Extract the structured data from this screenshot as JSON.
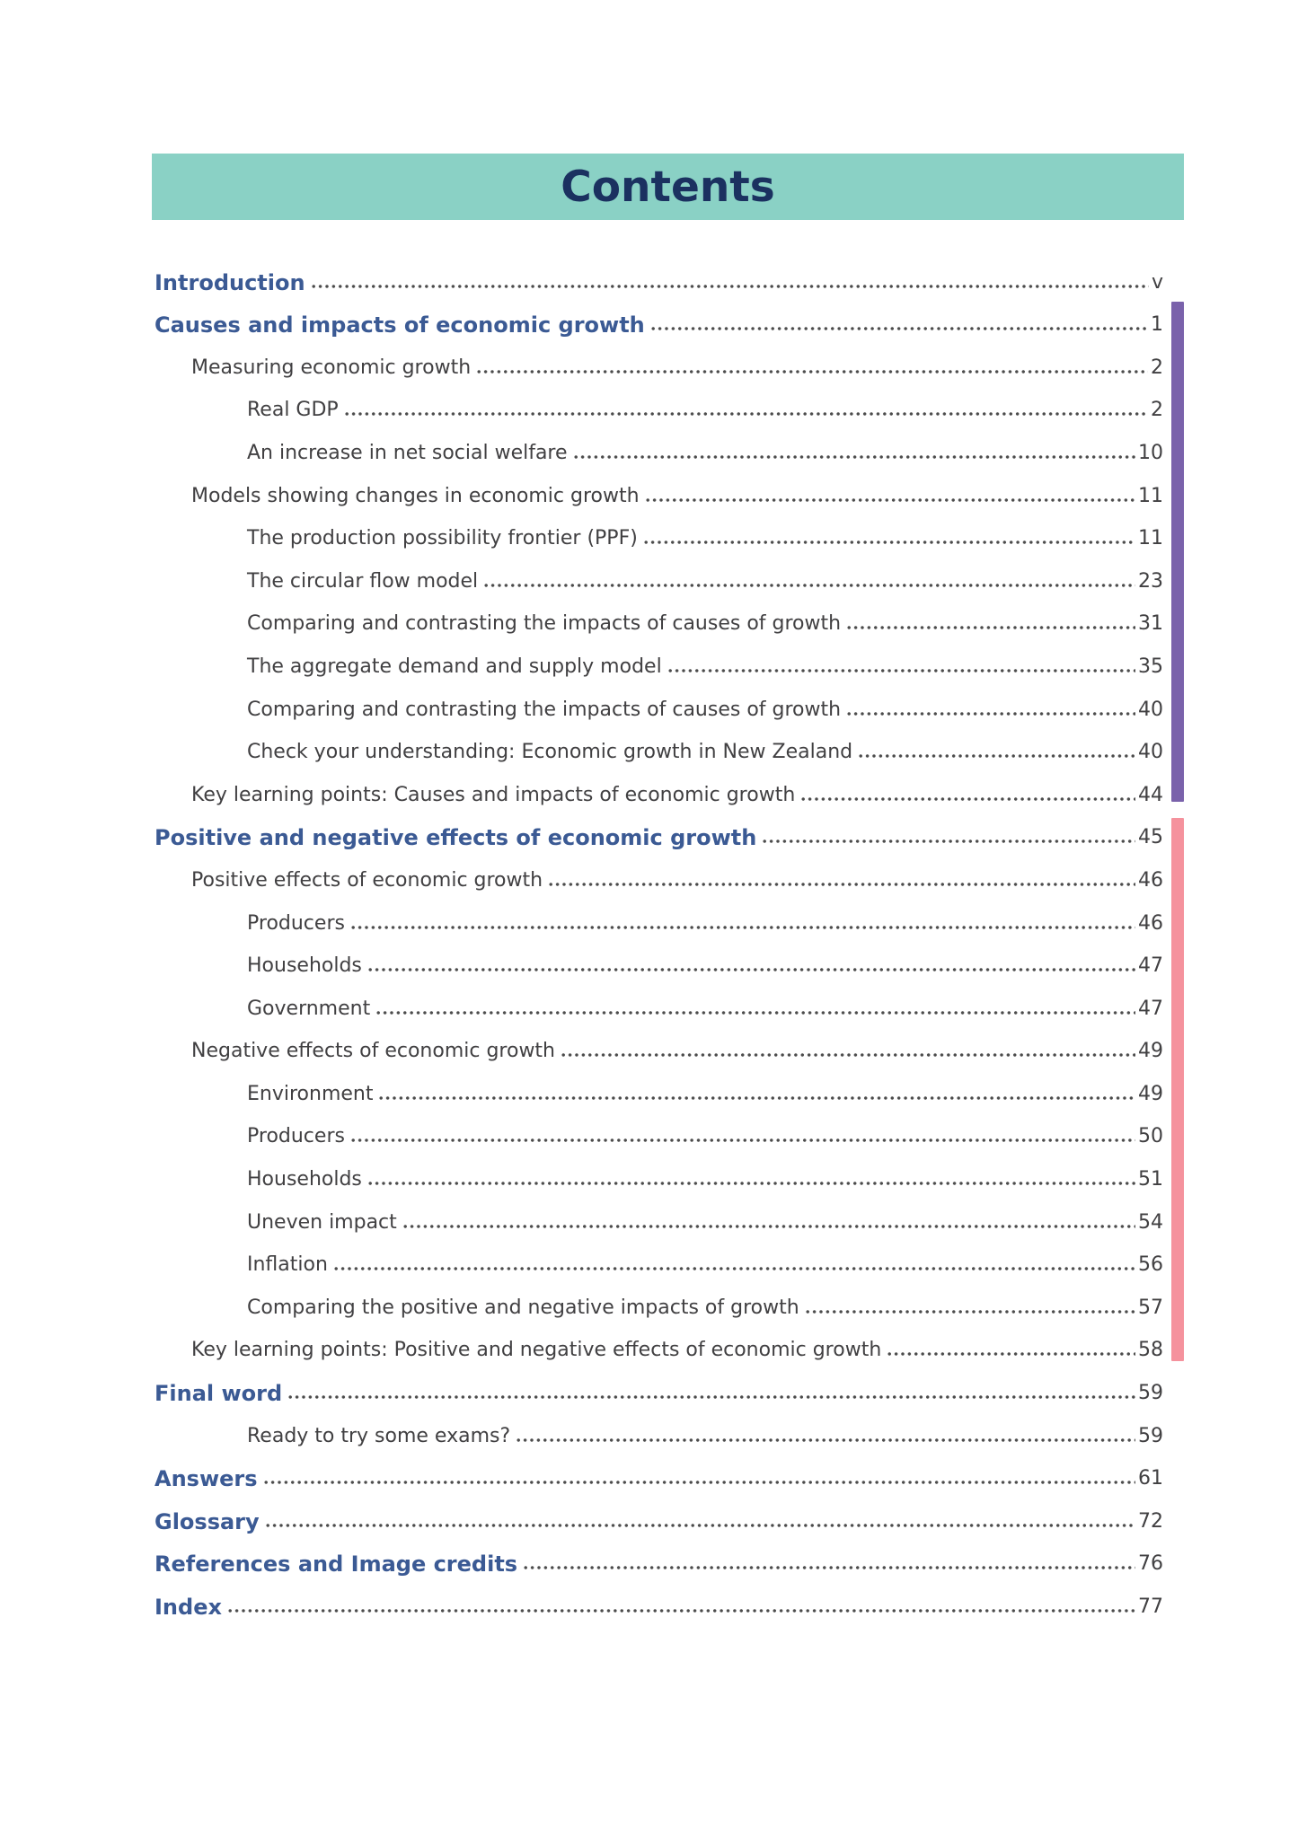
{
  "page": {
    "title": "Contents"
  },
  "colors": {
    "header_bg": "#8AD1C5",
    "title_text": "#1B3160",
    "heading_text": "#3B5A94",
    "body_text": "#414042",
    "dot_leader": "#4B4B4B",
    "purple_bar": "#7A62AB",
    "pink_bar": "#F5929D"
  },
  "toc": {
    "groups": [
      {
        "id": "front",
        "bar": null,
        "entries": [
          {
            "label": "Introduction",
            "page": "v",
            "level": 0
          }
        ]
      },
      {
        "id": "causes-and-impacts",
        "bar": "purple",
        "entries": [
          {
            "label": "Causes and impacts of economic growth",
            "page": "1",
            "level": 0
          },
          {
            "label": "Measuring economic growth",
            "page": "2",
            "level": 1
          },
          {
            "label": "Real GDP",
            "page": "2",
            "level": 2
          },
          {
            "label": "An increase in net social welfare",
            "page": "10",
            "level": 2
          },
          {
            "label": "Models showing changes in economic growth",
            "page": "11",
            "level": 1
          },
          {
            "label": "The production possibility frontier (PPF)",
            "page": "11",
            "level": 2
          },
          {
            "label": "The circular flow model",
            "page": "23",
            "level": 2
          },
          {
            "label": "Comparing and contrasting the impacts of causes of growth",
            "page": "31",
            "level": 2
          },
          {
            "label": "The aggregate demand and supply model",
            "page": "35",
            "level": 2
          },
          {
            "label": "Comparing and contrasting the impacts of causes of growth",
            "page": "40",
            "level": 2
          },
          {
            "label": "Check your understanding: Economic growth in New Zealand",
            "page": "40",
            "level": 2
          },
          {
            "label": "Key learning points: Causes and impacts of economic growth",
            "page": "44",
            "level": 1
          }
        ]
      },
      {
        "id": "positive-and-negative-effects",
        "bar": "pink",
        "entries": [
          {
            "label": "Positive and negative effects of economic growth",
            "page": "45",
            "level": 0
          },
          {
            "label": "Positive effects of economic growth",
            "page": "46",
            "level": 1
          },
          {
            "label": "Producers",
            "page": "46",
            "level": 2
          },
          {
            "label": "Households",
            "page": "47",
            "level": 2
          },
          {
            "label": "Government",
            "page": "47",
            "level": 2
          },
          {
            "label": "Negative effects of economic growth",
            "page": "49",
            "level": 1
          },
          {
            "label": "Environment",
            "page": "49",
            "level": 2
          },
          {
            "label": "Producers",
            "page": "50",
            "level": 2
          },
          {
            "label": "Households",
            "page": "51",
            "level": 2
          },
          {
            "label": "Uneven impact",
            "page": "54",
            "level": 2
          },
          {
            "label": "Inflation",
            "page": "56",
            "level": 2
          },
          {
            "label": "Comparing the positive and negative impacts of growth",
            "page": "57",
            "level": 2
          },
          {
            "label": "Key learning points: Positive and negative effects of economic growth",
            "page": "58",
            "level": 1
          }
        ]
      },
      {
        "id": "back",
        "bar": null,
        "entries": [
          {
            "label": "Final word",
            "page": "59",
            "level": 0
          },
          {
            "label": "Ready to try some exams?",
            "page": "59",
            "level": 2
          },
          {
            "label": "Answers",
            "page": "61",
            "level": 0
          },
          {
            "label": "Glossary",
            "page": "72",
            "level": 0
          },
          {
            "label": "References and Image credits",
            "page": "76",
            "level": 0
          },
          {
            "label": "Index",
            "page": "77",
            "level": 0
          }
        ]
      }
    ]
  }
}
